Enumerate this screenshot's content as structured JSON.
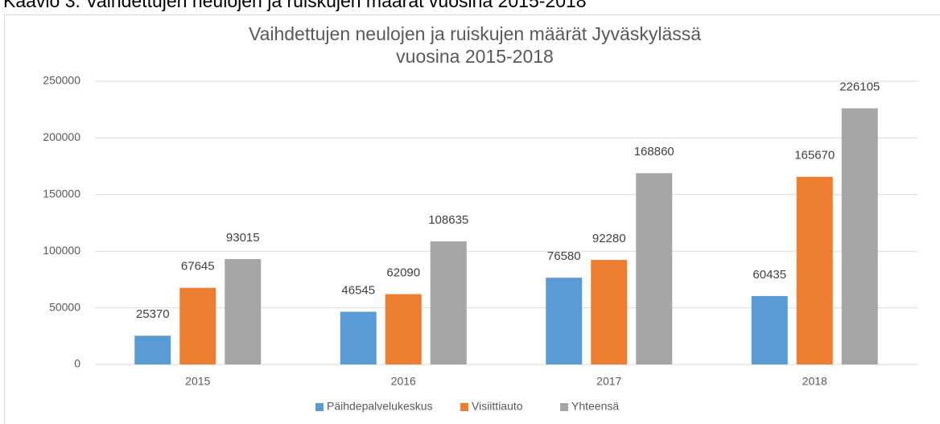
{
  "chart_data": {
    "type": "bar",
    "caption": "Kaavio 3. Vaihdettujen neulojen ja ruiskujen määrät vuosina 2015-2018",
    "title": [
      "Vaihdettujen neulojen ja ruiskujen määrät Jyväskylässä",
      "vuosina 2015-2018"
    ],
    "categories": [
      "2015",
      "2016",
      "2017",
      "2018"
    ],
    "series": [
      {
        "name": "Päihdepalvelukeskus",
        "color": "#5b9bd5",
        "values": [
          25370,
          46545,
          76580,
          60435
        ]
      },
      {
        "name": "Visiittiauto",
        "color": "#ed7d31",
        "values": [
          67645,
          62090,
          92280,
          165670
        ]
      },
      {
        "name": "Yhteensä",
        "color": "#a5a5a5",
        "values": [
          93015,
          108635,
          168860,
          226105
        ]
      }
    ],
    "ylim": [
      0,
      250000
    ],
    "yticks": [
      0,
      50000,
      100000,
      150000,
      200000,
      250000
    ],
    "grid": true,
    "legend": "bottom"
  }
}
